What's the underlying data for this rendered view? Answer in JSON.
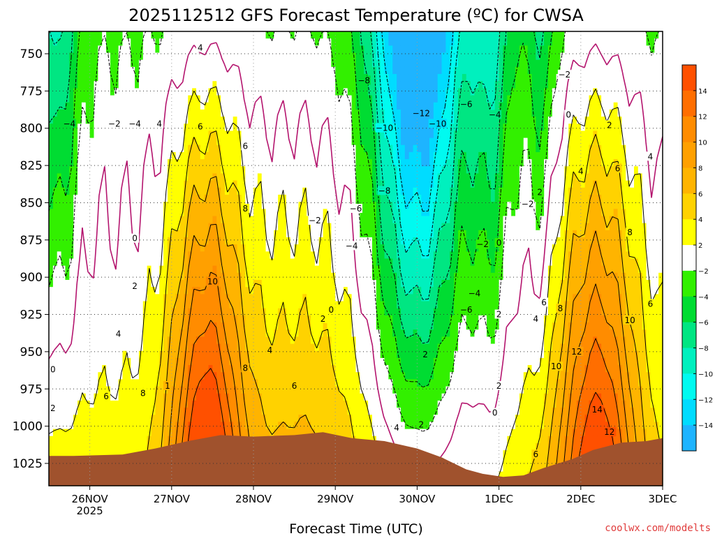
{
  "chart_data": {
    "type": "heatmap",
    "title": "2025112512 GFS Forecast Temperature (ºC) for CWSA",
    "xlabel": "Forecast Time (UTC)",
    "ylabel": "",
    "y_axis": {
      "unit": "hPa",
      "inverted": true,
      "ticks": [
        750,
        775,
        800,
        825,
        850,
        875,
        900,
        925,
        950,
        975,
        1000,
        1025
      ],
      "ylim": [
        1040,
        735
      ]
    },
    "x_axis": {
      "ticks": [
        {
          "label": "26NOV",
          "sublabel": "2025",
          "day": 1
        },
        {
          "label": "27NOV",
          "day": 2
        },
        {
          "label": "28NOV",
          "day": 3
        },
        {
          "label": "29NOV",
          "day": 4
        },
        {
          "label": "30NOV",
          "day": 5
        },
        {
          "label": "1DEC",
          "day": 6
        },
        {
          "label": "2DEC",
          "day": 7
        },
        {
          "label": "3DEC",
          "day": 8
        }
      ],
      "xlim": [
        0.5,
        8.0
      ]
    },
    "grid": true,
    "colorbar": {
      "placement": "right",
      "labels": [
        "14",
        "12",
        "10",
        "8",
        "6",
        "4",
        "2",
        "−2",
        "−4",
        "−6",
        "−8",
        "−10",
        "−12",
        "−14"
      ],
      "bins": [
        {
          "lo": 16,
          "hi": 14,
          "color": "#ff5000"
        },
        {
          "lo": 14,
          "hi": 12,
          "color": "#ff6e00"
        },
        {
          "lo": 12,
          "hi": 10,
          "color": "#ff8c00"
        },
        {
          "lo": 10,
          "hi": 8,
          "color": "#ffa000"
        },
        {
          "lo": 8,
          "hi": 6,
          "color": "#ffb400"
        },
        {
          "lo": 6,
          "hi": 4,
          "color": "#ffd200"
        },
        {
          "lo": 4,
          "hi": 2,
          "color": "#ffff00"
        },
        {
          "lo": 2,
          "hi": -2,
          "color": "#ffffff"
        },
        {
          "lo": -2,
          "hi": -4,
          "color": "#32f000"
        },
        {
          "lo": -4,
          "hi": -6,
          "color": "#00dc32"
        },
        {
          "lo": -6,
          "hi": -8,
          "color": "#00e682"
        },
        {
          "lo": -8,
          "hi": -10,
          "color": "#00f0be"
        },
        {
          "lo": -10,
          "hi": -12,
          "color": "#00faf0"
        },
        {
          "lo": -12,
          "hi": -14,
          "color": "#00dcff"
        },
        {
          "lo": -14,
          "hi": -16,
          "color": "#1eb4ff"
        }
      ]
    },
    "contour_labels": [
      {
        "text": "4",
        "day": 2.35,
        "p": 746
      },
      {
        "text": "−8",
        "day": 4.35,
        "p": 768
      },
      {
        "text": "−12",
        "day": 5.05,
        "p": 790
      },
      {
        "text": "−2",
        "day": 6.8,
        "p": 764
      },
      {
        "text": "0",
        "day": 6.85,
        "p": 791
      },
      {
        "text": "2",
        "day": 7.35,
        "p": 798
      },
      {
        "text": "−4",
        "day": 0.75,
        "p": 797
      },
      {
        "text": "−2",
        "day": 1.3,
        "p": 797
      },
      {
        "text": "−4",
        "day": 1.55,
        "p": 797
      },
      {
        "text": "4",
        "day": 1.85,
        "p": 797
      },
      {
        "text": "6",
        "day": 2.35,
        "p": 799
      },
      {
        "text": "−10",
        "day": 4.6,
        "p": 800
      },
      {
        "text": "−10",
        "day": 5.25,
        "p": 797
      },
      {
        "text": "−6",
        "day": 5.6,
        "p": 784
      },
      {
        "text": "−4",
        "day": 5.95,
        "p": 791
      },
      {
        "text": "6",
        "day": 2.9,
        "p": 812
      },
      {
        "text": "4",
        "day": 7.85,
        "p": 819
      },
      {
        "text": "4",
        "day": 7.0,
        "p": 829
      },
      {
        "text": "6",
        "day": 7.45,
        "p": 827
      },
      {
        "text": "−8",
        "day": 4.6,
        "p": 842
      },
      {
        "text": "2",
        "day": 6.5,
        "p": 843
      },
      {
        "text": "−2",
        "day": 6.35,
        "p": 851
      },
      {
        "text": "8",
        "day": 2.9,
        "p": 854
      },
      {
        "text": "−6",
        "day": 4.25,
        "p": 854
      },
      {
        "text": "−2",
        "day": 3.75,
        "p": 862
      },
      {
        "text": "8",
        "day": 7.6,
        "p": 870
      },
      {
        "text": "0",
        "day": 1.55,
        "p": 874
      },
      {
        "text": "0",
        "day": 6.0,
        "p": 877
      },
      {
        "text": "−2",
        "day": 5.8,
        "p": 878
      },
      {
        "text": "−4",
        "day": 4.2,
        "p": 879
      },
      {
        "text": "2",
        "day": 1.55,
        "p": 906
      },
      {
        "text": "10",
        "day": 2.5,
        "p": 903
      },
      {
        "text": "−4",
        "day": 5.7,
        "p": 911
      },
      {
        "text": "0",
        "day": 3.95,
        "p": 922
      },
      {
        "text": "−6",
        "day": 5.6,
        "p": 922
      },
      {
        "text": "6",
        "day": 6.55,
        "p": 917
      },
      {
        "text": "8",
        "day": 6.75,
        "p": 921
      },
      {
        "text": "6",
        "day": 7.85,
        "p": 918
      },
      {
        "text": "2",
        "day": 3.85,
        "p": 928
      },
      {
        "text": "2",
        "day": 6.0,
        "p": 925
      },
      {
        "text": "4",
        "day": 6.45,
        "p": 928
      },
      {
        "text": "10",
        "day": 7.6,
        "p": 929
      },
      {
        "text": "4",
        "day": 1.35,
        "p": 938
      },
      {
        "text": "4",
        "day": 3.2,
        "p": 949
      },
      {
        "text": "2",
        "day": 5.1,
        "p": 952
      },
      {
        "text": "12",
        "day": 6.95,
        "p": 950
      },
      {
        "text": "0",
        "day": 0.55,
        "p": 962
      },
      {
        "text": "8",
        "day": 2.9,
        "p": 961
      },
      {
        "text": "10",
        "day": 6.7,
        "p": 960
      },
      {
        "text": "1",
        "day": 1.95,
        "p": 973
      },
      {
        "text": "6",
        "day": 3.5,
        "p": 973
      },
      {
        "text": "2",
        "day": 6.0,
        "p": 973
      },
      {
        "text": "6",
        "day": 1.2,
        "p": 980
      },
      {
        "text": "8",
        "day": 1.65,
        "p": 978
      },
      {
        "text": "2",
        "day": 0.55,
        "p": 988
      },
      {
        "text": "0",
        "day": 5.95,
        "p": 991
      },
      {
        "text": "14",
        "day": 7.2,
        "p": 989
      },
      {
        "text": "4",
        "day": 4.75,
        "p": 1001
      },
      {
        "text": "2",
        "day": 5.05,
        "p": 999
      },
      {
        "text": "12",
        "day": 7.35,
        "p": 1004
      },
      {
        "text": "6",
        "day": 6.45,
        "p": 1019
      }
    ]
  },
  "credit": "coolwx.com/modelts",
  "colors": {
    "terrain": "#a0522d",
    "zero_line": "#b4146e"
  }
}
